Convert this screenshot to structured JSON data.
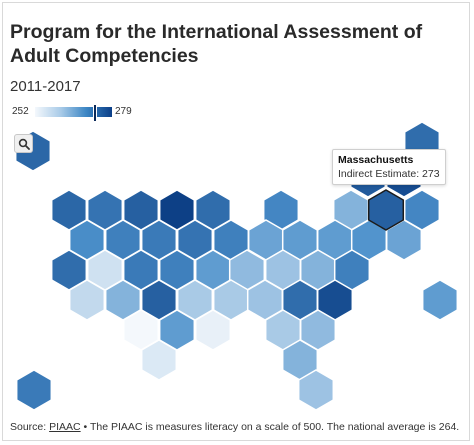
{
  "title": "Program for the International Assessment of Adult Competencies",
  "subtitle": "2011-2017",
  "legend": {
    "min_label": "252",
    "max_label": "279",
    "min": 252,
    "max": 279,
    "marker_value": 273
  },
  "zoom_control": {
    "icon": "search-icon"
  },
  "tooltip": {
    "title": "Massachusetts",
    "line": "Indirect Estimate: 273"
  },
  "source": {
    "prefix": "Source:",
    "link_text": "PIAAC",
    "note": " • The PIAAC is measures literacy on a scale of 500. The national average is 264."
  },
  "colors": {
    "low": "#f4f8fc",
    "mid": "#4c90cb",
    "high": "#083a80",
    "outline": "#1b1b1b"
  },
  "map_data": {
    "type": "hex-tile-choropleth",
    "active": "MA",
    "states": [
      {
        "id": "AK",
        "value": 272
      },
      {
        "id": "ME",
        "value": 271
      },
      {
        "id": "VT",
        "value": 274
      },
      {
        "id": "NH",
        "value": 276
      },
      {
        "id": "WA",
        "value": 272
      },
      {
        "id": "ID",
        "value": 270
      },
      {
        "id": "MT",
        "value": 273
      },
      {
        "id": "ND",
        "value": 278
      },
      {
        "id": "MN",
        "value": 271
      },
      {
        "id": "WI",
        "value": 267
      },
      {
        "id": "NY",
        "value": 261
      },
      {
        "id": "MA",
        "value": 273
      },
      {
        "id": "RI",
        "value": 267
      },
      {
        "id": "OR",
        "value": 266
      },
      {
        "id": "NV",
        "value": 268
      },
      {
        "id": "WY",
        "value": 269
      },
      {
        "id": "SD",
        "value": 270
      },
      {
        "id": "IA",
        "value": 268
      },
      {
        "id": "IL",
        "value": 263
      },
      {
        "id": "MI",
        "value": 264
      },
      {
        "id": "OH",
        "value": 264
      },
      {
        "id": "PA",
        "value": 265
      },
      {
        "id": "NJ",
        "value": 263
      },
      {
        "id": "CT",
        "value": 262
      },
      {
        "id": "CA",
        "value": 271
      },
      {
        "id": "UT",
        "value": 255
      },
      {
        "id": "CO",
        "value": 269
      },
      {
        "id": "NE",
        "value": 268
      },
      {
        "id": "MO",
        "value": 264
      },
      {
        "id": "KY",
        "value": 260
      },
      {
        "id": "WV",
        "value": 259
      },
      {
        "id": "VA",
        "value": 261
      },
      {
        "id": "MD",
        "value": 268
      },
      {
        "id": "DE",
        "value": 264
      },
      {
        "id": "AZ",
        "value": 256
      },
      {
        "id": "NM",
        "value": 261
      },
      {
        "id": "KS",
        "value": 273
      },
      {
        "id": "AR",
        "value": 258
      },
      {
        "id": "TN",
        "value": 258
      },
      {
        "id": "NC",
        "value": 259
      },
      {
        "id": "SC",
        "value": 271
      },
      {
        "id": "DC",
        "value": 276
      },
      {
        "id": "OK",
        "value": 252
      },
      {
        "id": "LA",
        "value": 264
      },
      {
        "id": "MS",
        "value": 253
      },
      {
        "id": "AL",
        "value": 258
      },
      {
        "id": "GA",
        "value": 260
      },
      {
        "id": "HI",
        "value": 269
      },
      {
        "id": "TX",
        "value": 254
      },
      {
        "id": "FL",
        "value": 261
      },
      {
        "id": "FL2",
        "value": 259
      }
    ]
  }
}
